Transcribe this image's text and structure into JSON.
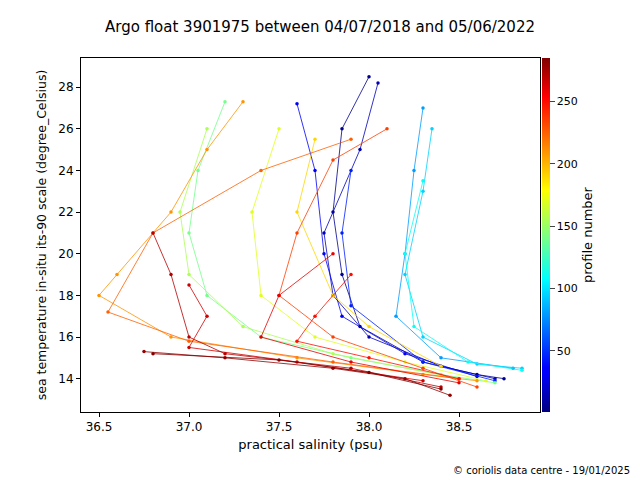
{
  "chart_data": {
    "type": "scatter",
    "title": "Argo float 3901975 between 04/07/2018 and 05/06/2022",
    "x_label": "practical salinity (psu)",
    "y_label": "sea temperature in-situ its-90 scale (degree_Celsius)",
    "annotations": [
      "© coriolis data centre - 19/01/2025"
    ],
    "xlim": [
      36.4,
      38.95
    ],
    "ylim": [
      12.4,
      29.4
    ],
    "xticks": [
      36.5,
      {
        "value": 37,
        "label": "37.0"
      },
      37.5,
      {
        "value": 38,
        "label": "38.0"
      },
      38.5
    ],
    "yticks": [
      14,
      16,
      18,
      20,
      22,
      24,
      26,
      28
    ],
    "grid": false,
    "color": "jet",
    "marker": "circle",
    "line_style": "solid",
    "colorbar": {
      "title": "profile number",
      "range": [
        1,
        285
      ],
      "ticks": [
        50,
        100,
        150,
        200,
        250
      ]
    },
    "series": [
      {
        "profile": 5,
        "x": [
          38.0,
          37.85,
          37.8,
          37.85,
          37.95,
          38.3,
          38.6,
          38.75
        ],
        "values": [
          28.5,
          26,
          22,
          19,
          16.5,
          14.8,
          14.2,
          14.0
        ]
      },
      {
        "profile": 15,
        "x": [
          38.05,
          37.95,
          37.75,
          37.8,
          38.0,
          38.4,
          38.7
        ],
        "values": [
          28.2,
          25,
          21,
          18,
          16,
          14.6,
          14.0
        ]
      },
      {
        "profile": 30,
        "x": [
          37.6,
          37.7,
          37.75,
          37.85,
          38.2,
          38.6
        ],
        "values": [
          27.2,
          24,
          20,
          17,
          15.2,
          14.1
        ]
      },
      {
        "profile": 45,
        "x": [
          37.9,
          37.85,
          37.9,
          38.3,
          38.7
        ],
        "values": [
          24,
          21,
          17.5,
          14.8,
          13.9
        ]
      },
      {
        "profile": 80,
        "x": [
          38.3,
          38.25,
          38.2,
          38.15,
          38.4,
          38.8
        ],
        "values": [
          27,
          24,
          20,
          17,
          15,
          14.5
        ]
      },
      {
        "profile": 95,
        "x": [
          38.35,
          38.3,
          38.2,
          38.3,
          38.6,
          38.85
        ],
        "values": [
          26,
          23,
          19,
          16,
          14.7,
          14.5
        ]
      },
      {
        "profile": 110,
        "x": [
          38.3,
          38.2,
          38.25,
          38.55,
          38.85
        ],
        "values": [
          23.5,
          20,
          16.5,
          14.8,
          14.4
        ]
      },
      {
        "profile": 140,
        "x": [
          37.2,
          37.05,
          37.0,
          37.1,
          37.4,
          37.9,
          38.4,
          38.7
        ],
        "values": [
          27.3,
          24,
          21,
          18,
          16,
          15.0,
          14.2,
          13.8
        ]
      },
      {
        "profile": 155,
        "x": [
          37.1,
          36.95,
          37.0,
          37.3,
          37.8,
          38.5
        ],
        "values": [
          26,
          22,
          19,
          16.5,
          15.2,
          14.0
        ]
      },
      {
        "profile": 170,
        "x": [
          37.5,
          37.35,
          37.4,
          37.7,
          38.2,
          38.65
        ],
        "values": [
          26,
          22,
          18,
          16,
          14.8,
          13.9
        ]
      },
      {
        "profile": 190,
        "x": [
          37.7,
          37.6,
          37.8,
          38.0,
          38.4
        ],
        "values": [
          25.5,
          22,
          18,
          16.5,
          14.6
        ]
      },
      {
        "profile": 210,
        "x": [
          37.3,
          37.1,
          36.9,
          36.6,
          36.5,
          36.9,
          37.6,
          38.3,
          38.6
        ],
        "values": [
          27.3,
          25,
          22,
          19,
          18,
          16,
          15,
          14.2,
          13.9
        ]
      },
      {
        "profile": 225,
        "x": [
          37.9,
          37.4,
          36.8,
          36.55,
          37.0,
          37.8,
          38.5
        ],
        "values": [
          25.5,
          24,
          21,
          17.2,
          15.8,
          14.8,
          14.0
        ]
      },
      {
        "profile": 235,
        "x": [
          38.1,
          37.8,
          37.6,
          37.5,
          37.8,
          38.3,
          38.6
        ],
        "values": [
          26,
          24.5,
          21,
          18,
          16,
          14.5,
          13.6
        ]
      },
      {
        "profile": 250,
        "x": [
          37.9,
          37.7,
          37.6,
          38.0,
          38.5
        ],
        "values": [
          19,
          17,
          15.8,
          15,
          14.0
        ]
      },
      {
        "profile": 260,
        "x": [
          37.8,
          37.5,
          37.4,
          37.9,
          38.5
        ],
        "values": [
          20,
          18,
          16,
          14.8,
          13.8
        ]
      },
      {
        "profile": 265,
        "x": [
          37.0,
          37.1,
          37.0,
          37.6,
          38.3
        ],
        "values": [
          18.5,
          17,
          15.5,
          14.8,
          13.9
        ]
      },
      {
        "profile": 272,
        "x": [
          36.8,
          36.9,
          37.0,
          37.2,
          37.9,
          38.4
        ],
        "values": [
          21,
          19,
          16,
          15.2,
          14.5,
          13.6
        ]
      },
      {
        "profile": 280,
        "x": [
          36.75,
          37.2,
          37.8,
          38.2,
          38.45
        ],
        "values": [
          15.3,
          15.0,
          14.5,
          14.0,
          13.2
        ]
      },
      {
        "profile": 285,
        "x": [
          36.8,
          37.5,
          38.0,
          38.4
        ],
        "values": [
          15.2,
          14.9,
          14.3,
          13.5
        ]
      }
    ]
  }
}
